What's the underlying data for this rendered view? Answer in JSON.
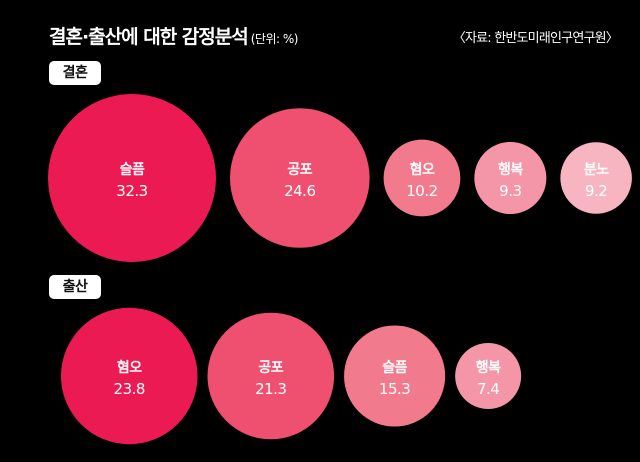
{
  "header": {
    "title": "결혼·출산에 대한 감정분석",
    "unit": "(단위: %)",
    "source": "〈자료: 한반도미래인구연구원〉"
  },
  "colors": {
    "background": "#000000",
    "scale": [
      "#ec1a52",
      "#ef5070",
      "#f27a8d",
      "#f496a7",
      "#f6b5c1"
    ]
  },
  "chart_data": [
    {
      "type": "bubble",
      "title": "결혼",
      "categories": [
        "슬픔",
        "공포",
        "혐오",
        "행복",
        "분노"
      ],
      "values": [
        32.3,
        24.6,
        10.2,
        9.3,
        9.2
      ]
    },
    {
      "type": "bubble",
      "title": "출산",
      "categories": [
        "혐오",
        "공포",
        "슬픔",
        "행복"
      ],
      "values": [
        23.8,
        21.3,
        15.3,
        7.4
      ]
    }
  ]
}
